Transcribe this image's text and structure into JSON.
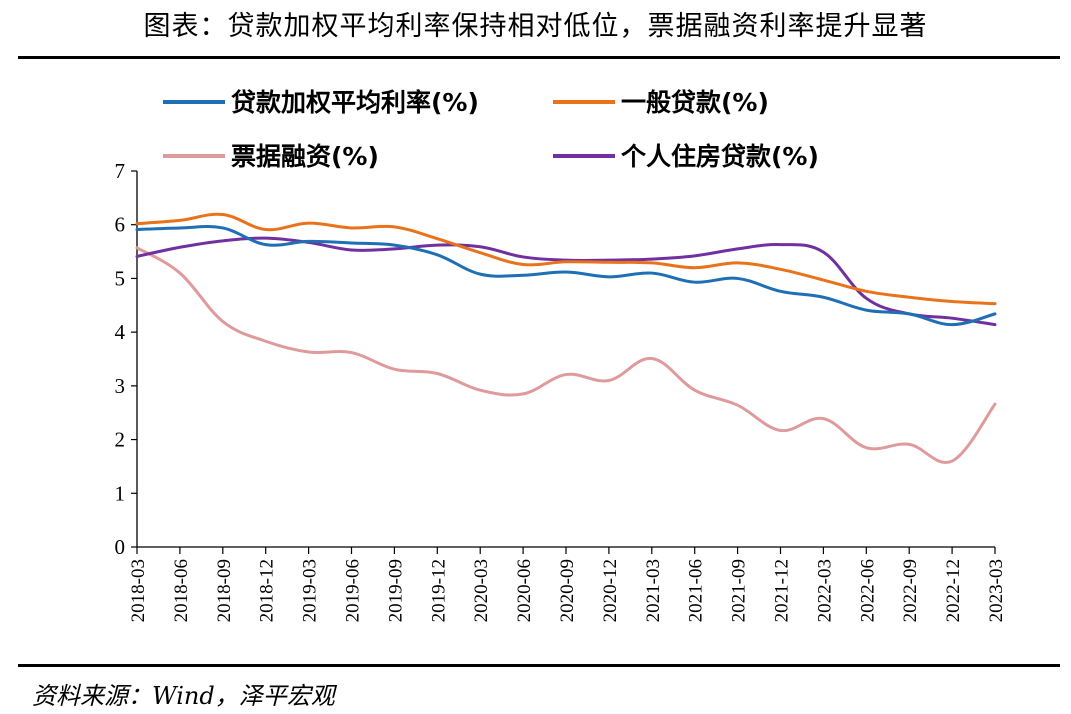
{
  "figure": {
    "title": "图表：贷款加权平均利率保持相对低位，票据融资利率提升显著",
    "source": "资料来源：Wind，泽平宏观"
  },
  "chart_data": {
    "type": "line",
    "title": "",
    "xlabel": "",
    "ylabel": "",
    "ylim": [
      0,
      7
    ],
    "yticks": [
      "0",
      "1",
      "2",
      "3",
      "4",
      "5",
      "6",
      "7"
    ],
    "grid": false,
    "legend_position": "top",
    "x": [
      "2018-03",
      "2018-06",
      "2018-09",
      "2018-12",
      "2019-03",
      "2019-06",
      "2019-09",
      "2019-12",
      "2020-03",
      "2020-06",
      "2020-09",
      "2020-12",
      "2021-03",
      "2021-06",
      "2021-09",
      "2021-12",
      "2022-03",
      "2022-06",
      "2022-09",
      "2022-12",
      "2023-03"
    ],
    "series": [
      {
        "name": "贷款加权平均利率(%)",
        "color": "#1f6fb5",
        "values": [
          5.91,
          5.94,
          5.94,
          5.63,
          5.69,
          5.66,
          5.62,
          5.44,
          5.08,
          5.06,
          5.12,
          5.03,
          5.1,
          4.93,
          5.0,
          4.76,
          4.65,
          4.41,
          4.34,
          4.14,
          4.34
        ]
      },
      {
        "name": "一般贷款(%)",
        "color": "#e8731a",
        "values": [
          6.02,
          6.08,
          6.19,
          5.91,
          6.03,
          5.94,
          5.96,
          5.74,
          5.48,
          5.26,
          5.31,
          5.3,
          5.29,
          5.2,
          5.29,
          5.17,
          4.97,
          4.76,
          4.65,
          4.57,
          4.53
        ]
      },
      {
        "name": "票据融资(%)",
        "color": "#df9a9b",
        "values": [
          5.57,
          5.1,
          4.2,
          3.83,
          3.63,
          3.62,
          3.31,
          3.23,
          2.92,
          2.85,
          3.21,
          3.1,
          3.51,
          2.92,
          2.64,
          2.17,
          2.39,
          1.85,
          1.91,
          1.6,
          2.66
        ]
      },
      {
        "name": "个人住房贷款(%)",
        "color": "#7030a0",
        "values": [
          5.41,
          5.58,
          5.7,
          5.75,
          5.67,
          5.53,
          5.55,
          5.62,
          5.59,
          5.4,
          5.34,
          5.34,
          5.36,
          5.42,
          5.55,
          5.63,
          5.49,
          4.63,
          4.34,
          4.26,
          4.14
        ]
      }
    ]
  }
}
